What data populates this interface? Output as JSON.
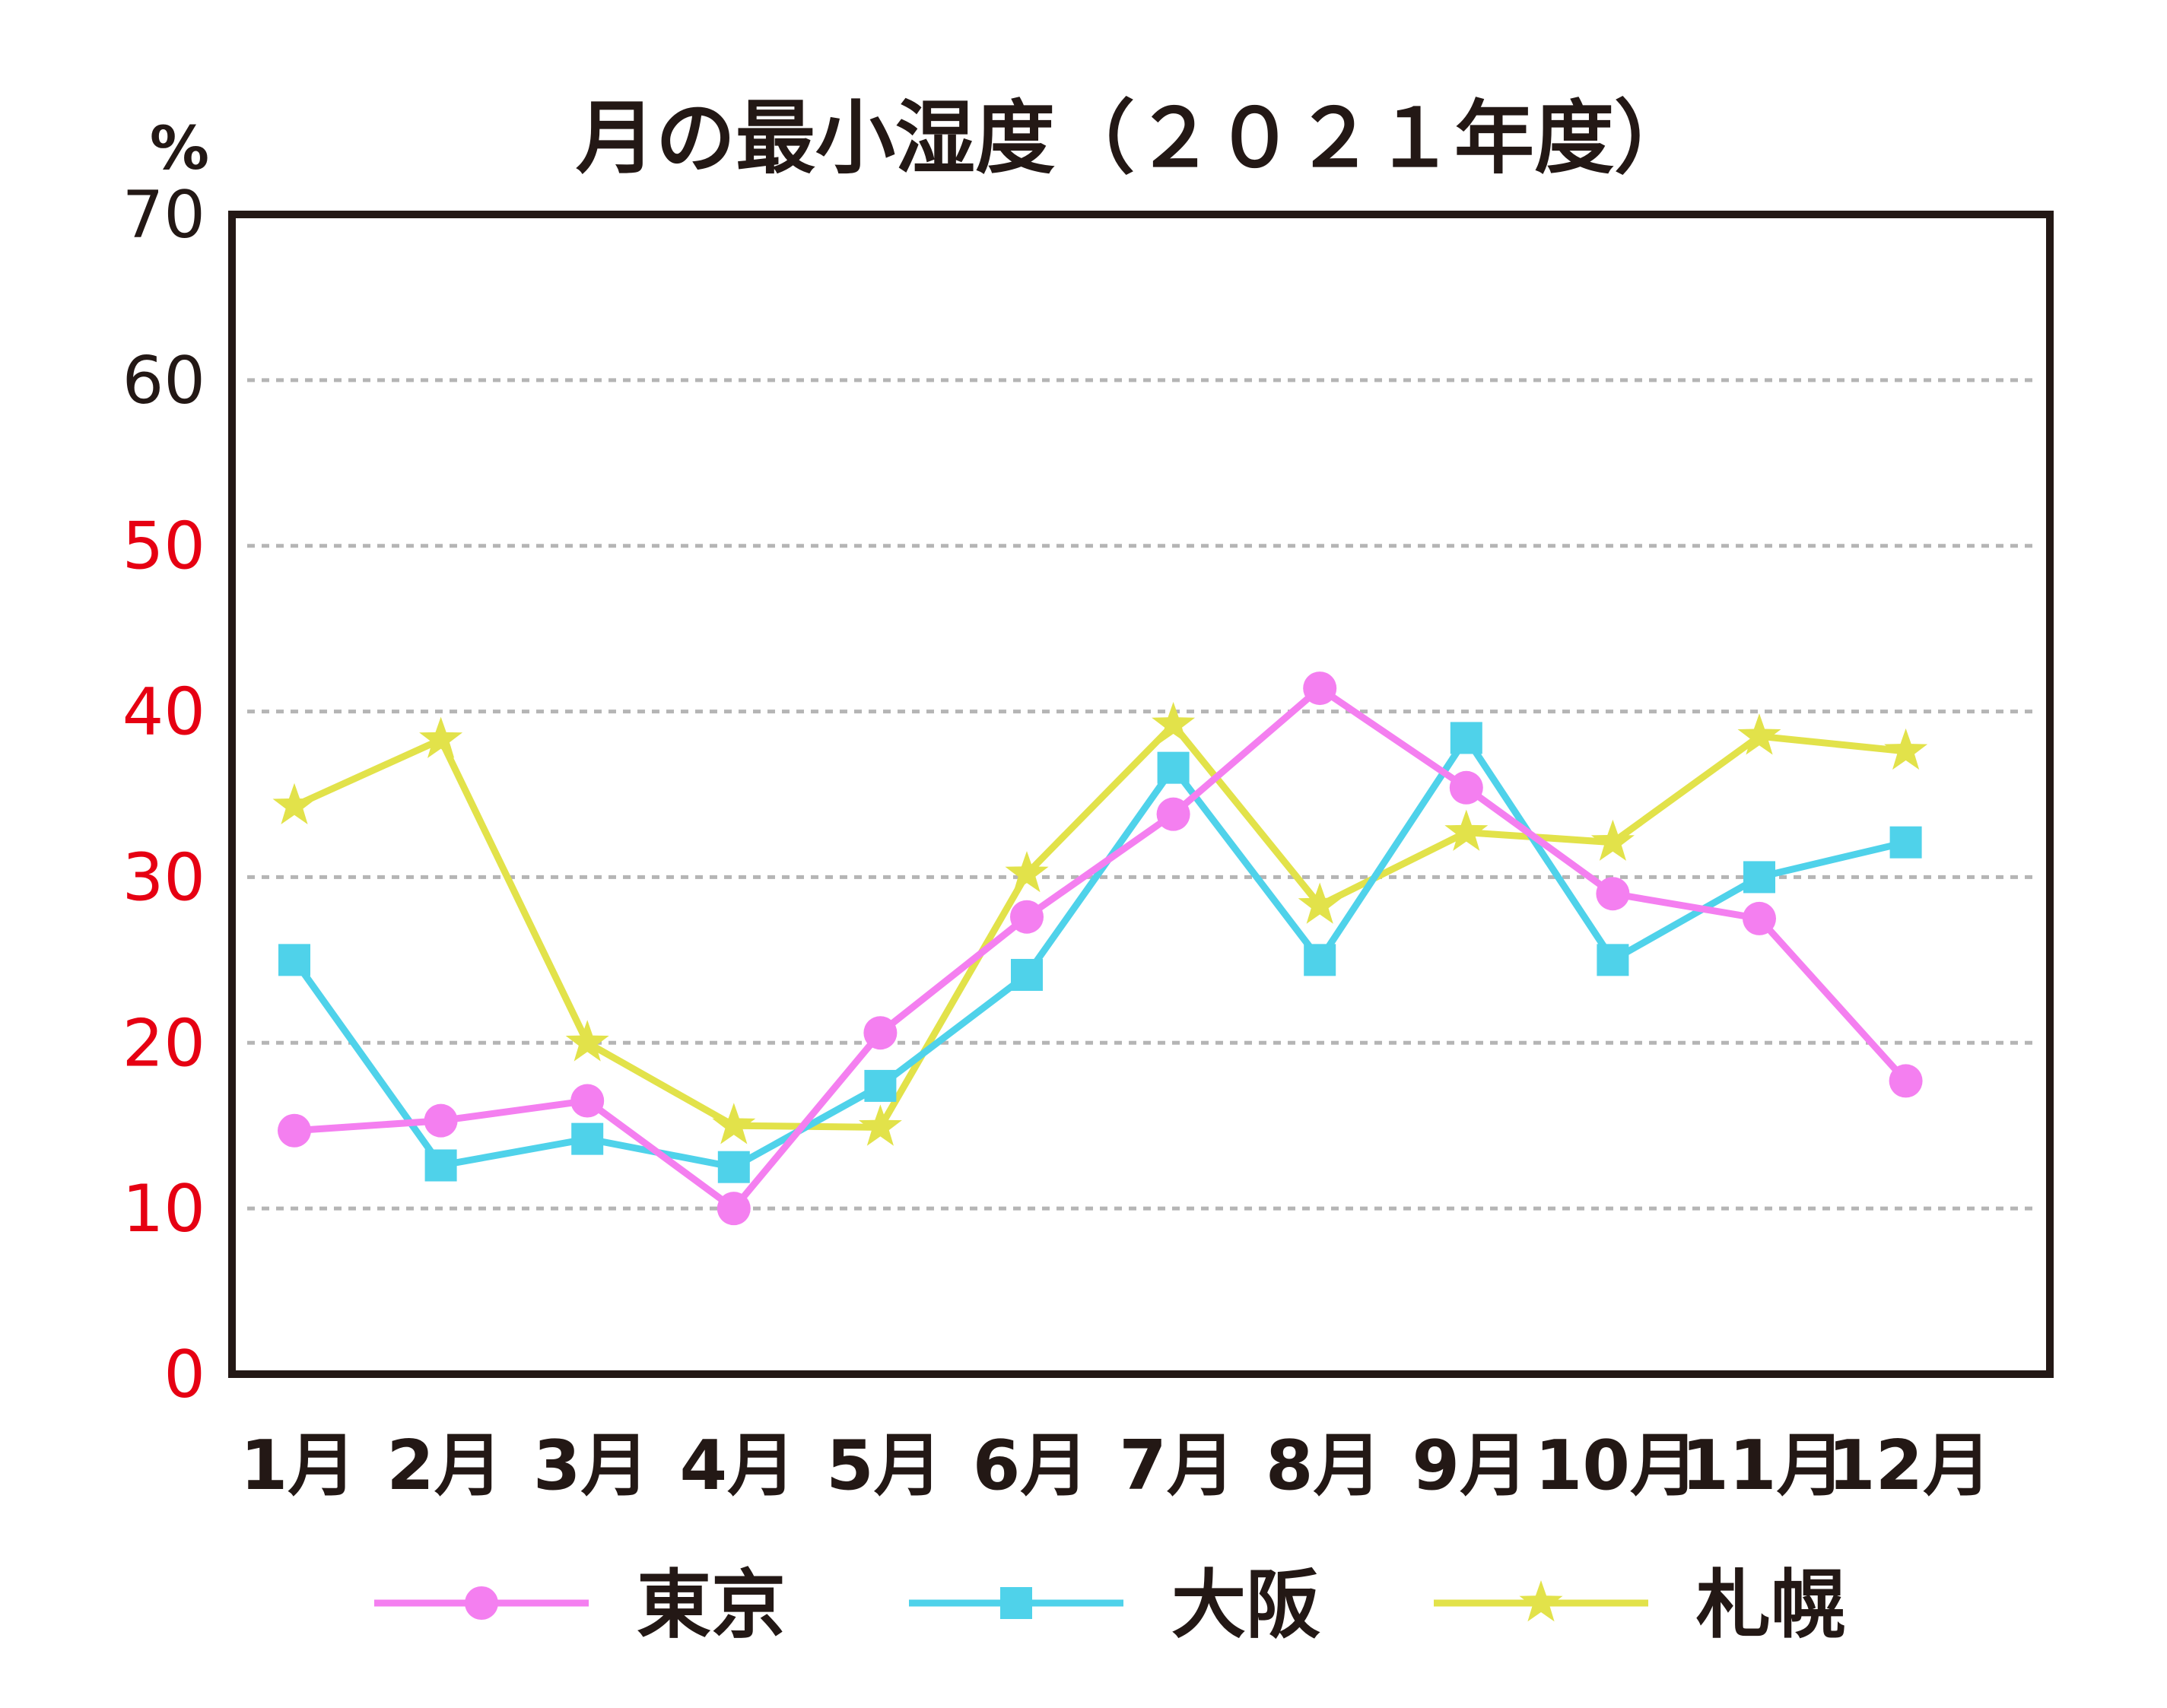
{
  "chart_data": {
    "type": "line",
    "title": "月の最小湿度（２０２１年度）",
    "unit_label": "%",
    "ylim": [
      0,
      70
    ],
    "y_ticks": [
      "0",
      "10",
      "20",
      "30",
      "40",
      "50",
      "60",
      "70"
    ],
    "categories": [
      "1月",
      "2月",
      "3月",
      "4月",
      "5月",
      "6月",
      "7月",
      "8月",
      "9月",
      "10月",
      "11月",
      "12月"
    ],
    "grid": true,
    "legend_position": "bottom",
    "series": [
      {
        "name": "東京",
        "color": "#f47ff0",
        "marker": "circle",
        "values": [
          14.7,
          15.3,
          16.5,
          10.0,
          20.6,
          27.6,
          33.8,
          41.4,
          35.4,
          29.0,
          27.5,
          17.7
        ]
      },
      {
        "name": "大阪",
        "color": "#4fd2ea",
        "marker": "square",
        "values": [
          25.0,
          12.6,
          14.2,
          12.5,
          17.4,
          24.1,
          36.6,
          25.0,
          38.4,
          25.0,
          30.0,
          32.1
        ]
      },
      {
        "name": "札幌",
        "color": "#e2e24a",
        "marker": "star",
        "values": [
          34.3,
          38.3,
          20.0,
          15.0,
          14.9,
          30.2,
          39.2,
          28.3,
          32.7,
          32.1,
          38.5,
          37.6
        ]
      }
    ],
    "colors": {
      "axis_frame": "#231815",
      "tick_black": "#231815",
      "tick_red": "#e60012",
      "gridline": "#b5b5b5"
    },
    "red_tick_values": [
      "0",
      "10",
      "20",
      "30",
      "40",
      "50"
    ]
  }
}
